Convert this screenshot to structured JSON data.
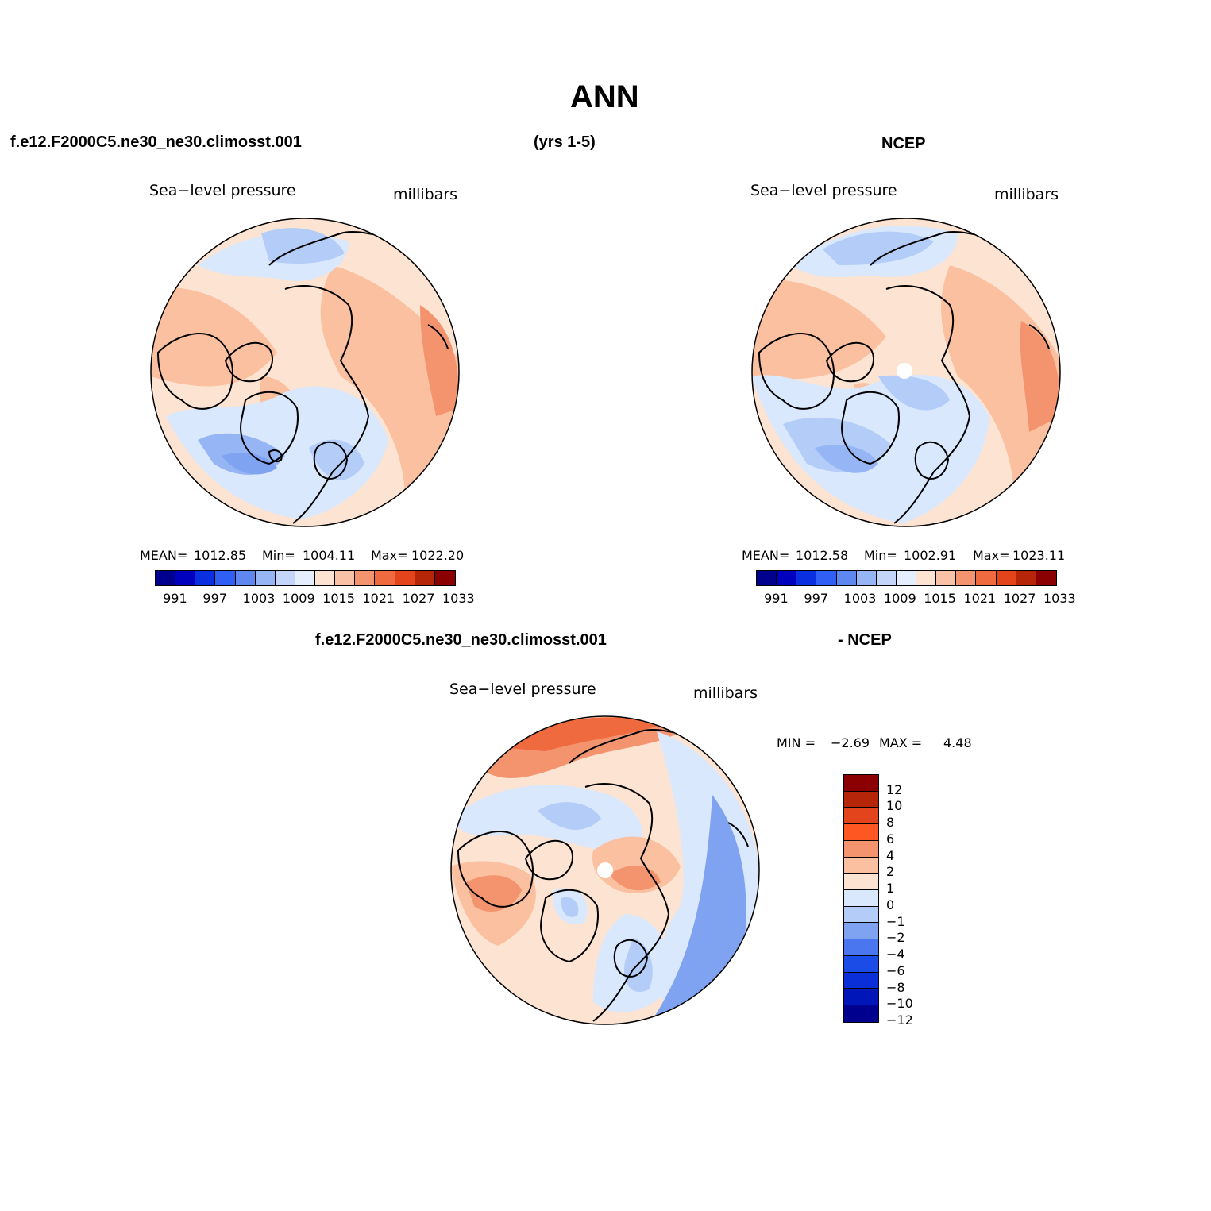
{
  "title": "ANN",
  "top_row": {
    "case_name": "f.e12.F2000C5.ne30_ne30.climosst.001",
    "years": "(yrs 1-5)",
    "obs_name": "NCEP"
  },
  "panel_left": {
    "field_label": "Sea−level pressure",
    "units": "millibars",
    "mean_label": "MEAN=",
    "mean_value": "1012.85",
    "min_label": "Min=",
    "min_value": "1004.11",
    "max_label": "Max=",
    "max_value": "1022.20"
  },
  "panel_right": {
    "field_label": "Sea−level pressure",
    "units": "millibars",
    "mean_label": "MEAN=",
    "mean_value": "1012.58",
    "min_label": "Min=",
    "min_value": "1002.91",
    "max_label": "Max=",
    "max_value": "1023.11"
  },
  "abs_colorbar": {
    "colors": [
      "#00008f",
      "#0000bf",
      "#0a2fe0",
      "#2f5ff4",
      "#5f87f0",
      "#96b5f5",
      "#c3d6fa",
      "#e4eefc",
      "#fde4d2",
      "#f9c1a6",
      "#f4946f",
      "#ef6a3e",
      "#e3441b",
      "#b52608",
      "#8b0000"
    ],
    "tick_labels": [
      "991",
      "997",
      "1003",
      "1009",
      "1015",
      "1021",
      "1027",
      "1033"
    ]
  },
  "diff_header": {
    "case_name": "f.e12.F2000C5.ne30_ne30.climosst.001",
    "obs_name": "- NCEP"
  },
  "panel_diff": {
    "field_label": "Sea−level pressure",
    "units": "millibars",
    "min_label": "MIN =",
    "min_value": "−2.69",
    "max_label": "MAX =",
    "max_value": "4.48"
  },
  "diff_colorbar": {
    "colors": [
      "#8b0000",
      "#b52608",
      "#e3441b",
      "#ff5722",
      "#f4946f",
      "#fac0a0",
      "#fde4d2",
      "#d9e8fc",
      "#b3cdf8",
      "#7fa3f1",
      "#4a77f0",
      "#1c4ce8",
      "#0a2fd8",
      "#0016b8",
      "#00008f"
    ],
    "tick_labels": [
      "12",
      "10",
      "8",
      "6",
      "4",
      "2",
      "1",
      "0",
      "−1",
      "−2",
      "−4",
      "−6",
      "−8",
      "−10",
      "−12"
    ]
  },
  "map_colors": {
    "land_outline": "#000000",
    "neg_light": "#d9e8fc",
    "neg_mid": "#b3cdf8",
    "neg_strong": "#7fa3f1",
    "neutral_pos": "#fde4d2",
    "pos_light": "#fac0a0",
    "pos_mid": "#f4946f",
    "pos_strong": "#ef6a3e"
  }
}
